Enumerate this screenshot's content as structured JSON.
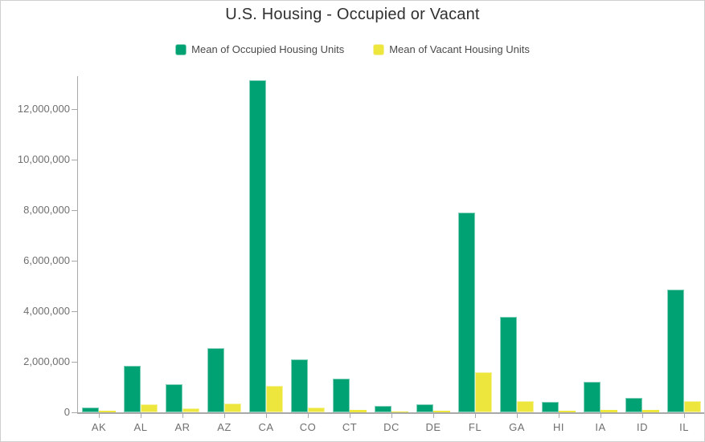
{
  "header": {
    "title": "U.S. Housing - Occupied or Vacant"
  },
  "legend": {
    "items": [
      {
        "id": "occupied",
        "label": "Mean of Occupied Housing Units",
        "color": "#00a172",
        "border_color": "#7fd0b4"
      },
      {
        "id": "vacant",
        "label": "Mean of Vacant Housing Units",
        "color": "#ede63d",
        "border_color": "#f4efa2"
      }
    ]
  },
  "chart_data": {
    "type": "bar",
    "title": "U.S. Housing - Occupied or Vacant",
    "categories": [
      "AK",
      "AL",
      "AR",
      "AZ",
      "CA",
      "CO",
      "CT",
      "DC",
      "DE",
      "FL",
      "GA",
      "HI",
      "IA",
      "ID",
      "IL"
    ],
    "series": [
      {
        "name": "Mean of Occupied Housing Units",
        "color": "#00a172",
        "border_color": "#7fd0b4",
        "values": [
          200000,
          1850000,
          1100000,
          2550000,
          13150000,
          2080000,
          1330000,
          250000,
          330000,
          7900000,
          3780000,
          420000,
          1220000,
          580000,
          4850000
        ]
      },
      {
        "name": "Mean of Vacant Housing Units",
        "color": "#ede63d",
        "border_color": "#f4efa2",
        "values": [
          55000,
          320000,
          160000,
          350000,
          1060000,
          190000,
          100000,
          30000,
          70000,
          1580000,
          440000,
          60000,
          110000,
          80000,
          440000
        ]
      }
    ],
    "xlabel": "",
    "ylabel": "",
    "ylim": [
      0,
      13400000
    ],
    "y_tick_interval": 2000000,
    "y_tick_labels": [
      "0",
      "2,000,000",
      "4,000,000",
      "6,000,000",
      "8,000,000",
      "10,000,000",
      "12,000,000"
    ],
    "grid": "off",
    "legend_position": "top"
  }
}
